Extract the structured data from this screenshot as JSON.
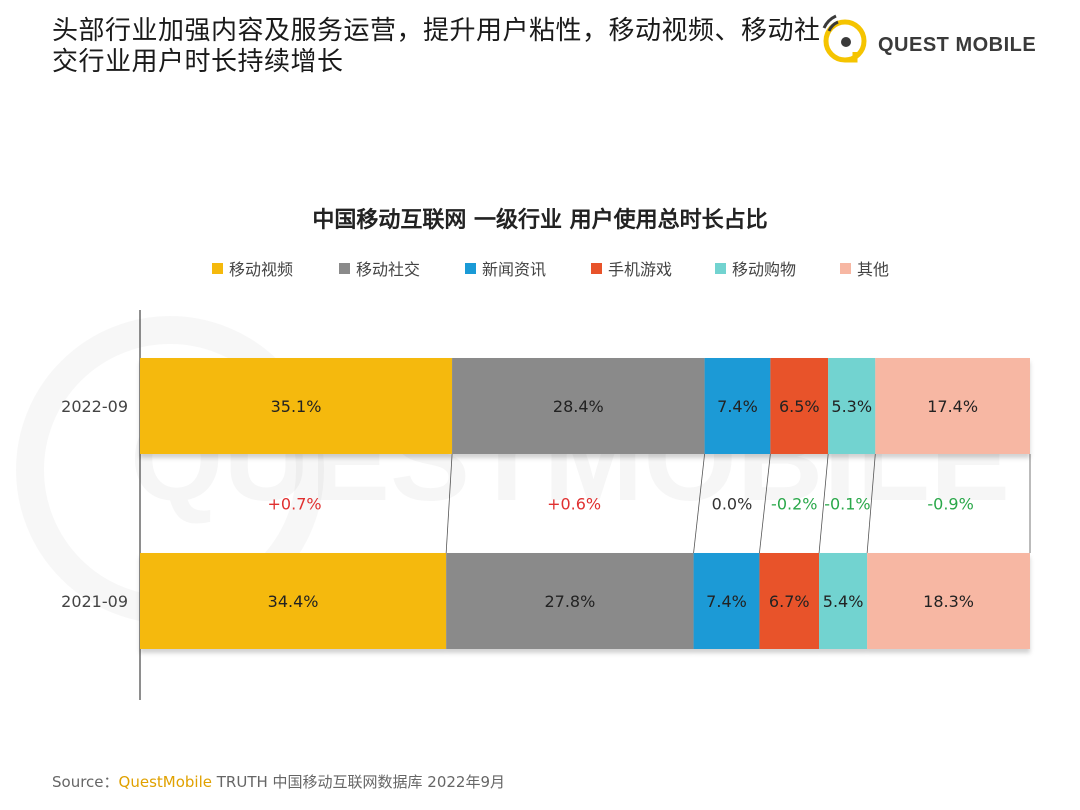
{
  "header": {
    "headline": "头部行业加强内容及服务运营，提升用户粘性，移动视频、移动社交行业用户时长持续增长",
    "logo_text": "QUEST MOBILE",
    "logo_icon": "questmobile-logo-icon",
    "watermark": "QUESTMOBILE"
  },
  "source": {
    "prefix": "Source：",
    "brand": "QuestMobile",
    "rest": " TRUTH 中国移动互联网数据库 2022年9月"
  },
  "chart_data": {
    "type": "bar",
    "orientation": "horizontal",
    "stacked": true,
    "title": "中国移动互联网 一级行业 用户使用总时长占比",
    "legend_position": "top",
    "categories": [
      "2022-09",
      "2021-09"
    ],
    "series": [
      {
        "name": "移动视频",
        "color": "#f5b90c",
        "values": [
          35.1,
          34.4
        ],
        "labels": [
          "35.1%",
          "34.4%"
        ],
        "change": "+0.7%",
        "change_color": "#e03030"
      },
      {
        "name": "移动社交",
        "color": "#8a8a8a",
        "values": [
          28.4,
          27.8
        ],
        "labels": [
          "28.4%",
          "27.8%"
        ],
        "change": "+0.6%",
        "change_color": "#e03030"
      },
      {
        "name": "新闻资讯",
        "color": "#1a9ad6",
        "values": [
          7.4,
          7.4
        ],
        "labels": [
          "7.4%",
          "7.4%"
        ],
        "change": "0.0%",
        "change_color": "#333333"
      },
      {
        "name": "手机游戏",
        "color": "#e8532a",
        "values": [
          6.5,
          6.7
        ],
        "labels": [
          "6.5%",
          "6.7%"
        ],
        "change": "-0.2%",
        "change_color": "#2aa84a"
      },
      {
        "name": "移动购物",
        "color": "#72d3d0",
        "values": [
          5.3,
          5.4
        ],
        "labels": [
          "5.3%",
          "5.4%"
        ],
        "change": "-0.1%",
        "change_color": "#2aa84a"
      },
      {
        "name": "其他",
        "color": "#f7b7a3",
        "values": [
          17.4,
          18.3
        ],
        "labels": [
          "17.4%",
          "18.3%"
        ],
        "change": "-0.9%",
        "change_color": "#2aa84a"
      }
    ]
  }
}
